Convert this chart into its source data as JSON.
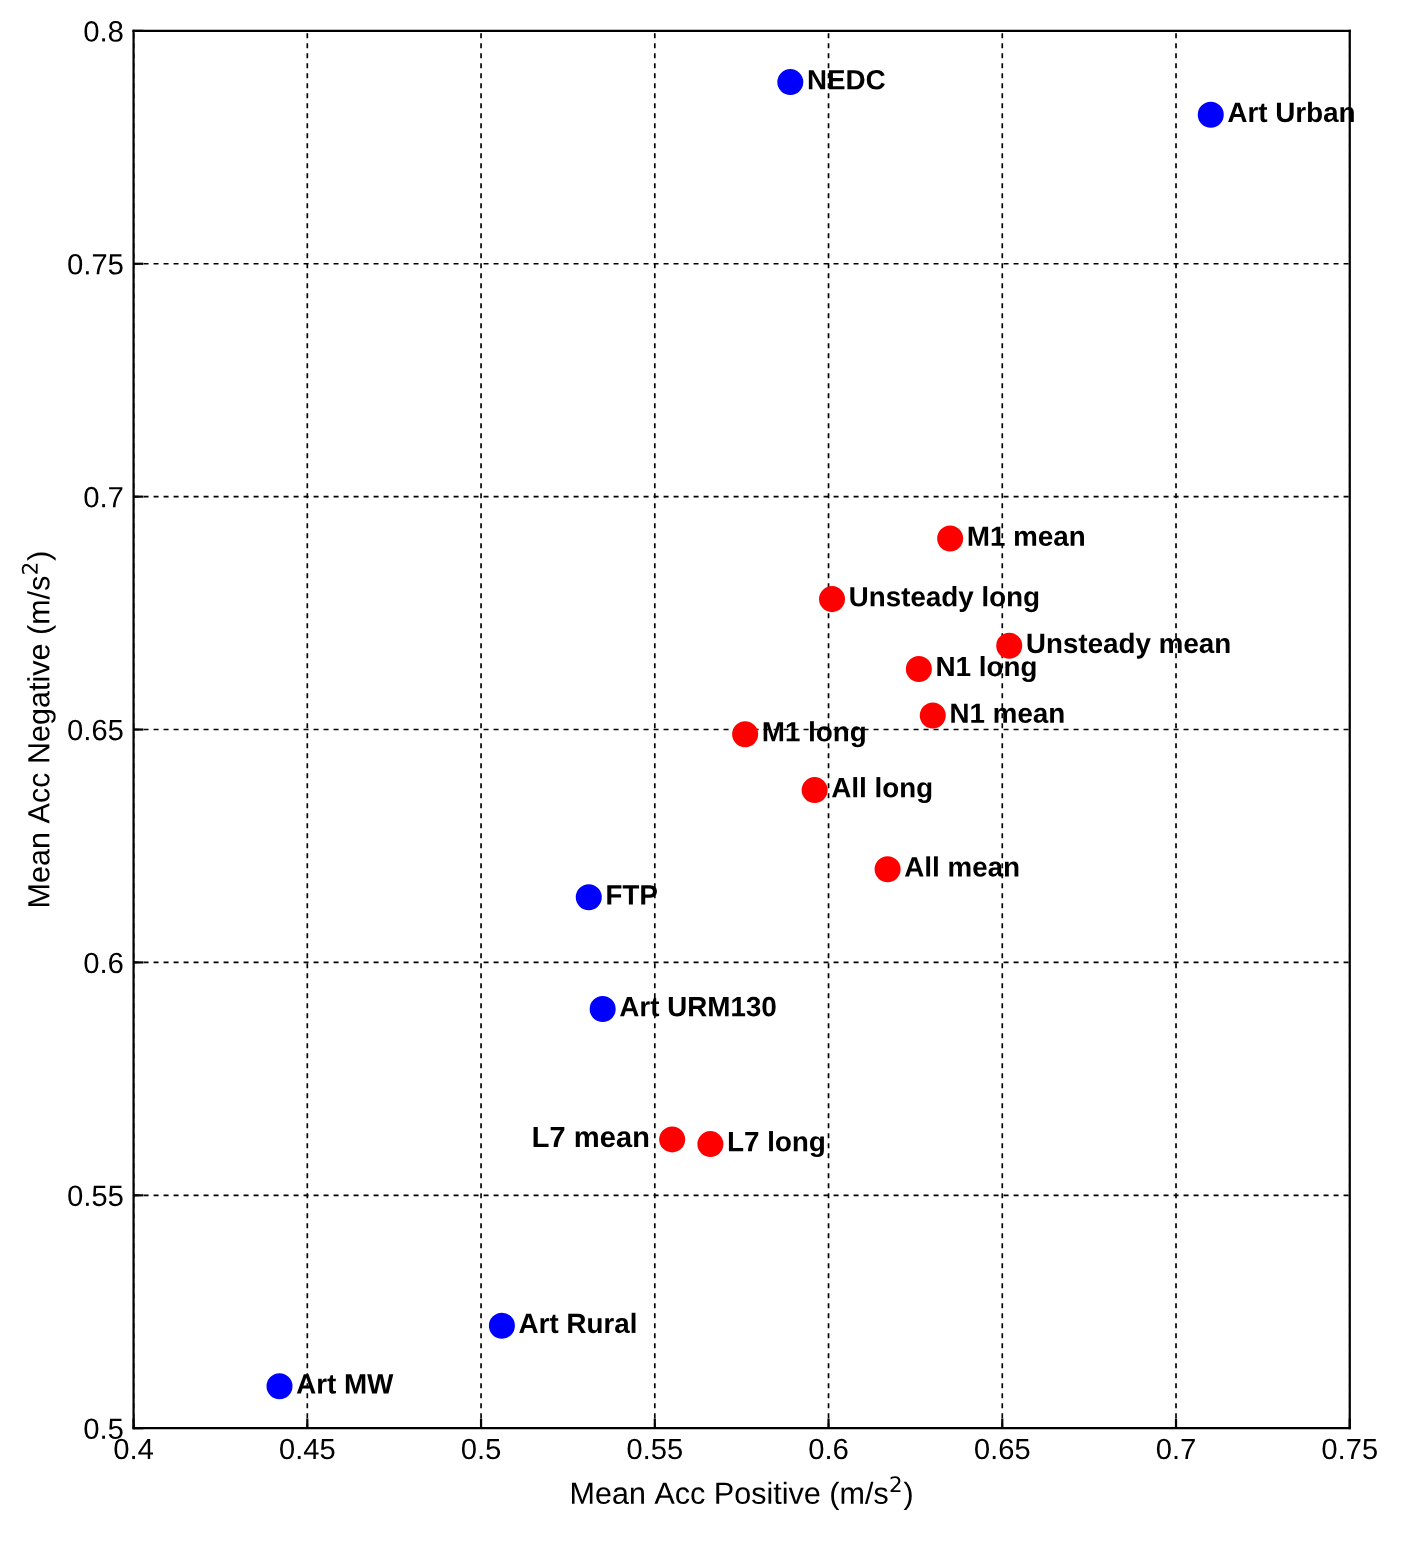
{
  "chart_data": {
    "type": "scatter",
    "xlabel": "Mean Acc Positive (m/s$^{2}$)",
    "ylabel": "Mean Acc Negative (m/s$^{2}$)",
    "xlim": [
      0.4,
      0.75
    ],
    "xticks": [
      0.4,
      0.45,
      0.5,
      0.55,
      0.6,
      0.65,
      0.7,
      0.75
    ],
    "ylim": [
      0.5,
      0.8
    ],
    "yticks": [
      0.5,
      0.55,
      0.6,
      0.65,
      0.7,
      0.75,
      0.8
    ],
    "grid": true,
    "marker": "circle",
    "series": [
      {
        "color": "#0000ff",
        "x": [
          0.589,
          0.71,
          0.531,
          0.535,
          0.506,
          0.442
        ],
        "values": [
          0.789,
          0.782,
          0.614,
          0.59,
          0.522,
          0.509
        ],
        "value_labels": [
          "NEDC",
          "Art Urban",
          "FTP",
          "Art URM130",
          "Art Rural",
          "Art MW"
        ]
      },
      {
        "color": "#ff0000",
        "x": [
          0.635,
          0.601,
          0.652,
          0.626,
          0.63,
          0.576,
          0.596,
          0.617,
          0.555,
          0.566
        ],
        "values": [
          0.691,
          0.678,
          0.668,
          0.663,
          0.653,
          0.649,
          0.637,
          0.62,
          0.562,
          0.561
        ],
        "value_labels": [
          "M1 mean",
          "Unsteady long",
          "Unsteady mean",
          "N1 long",
          "N1 mean",
          "M1 long",
          "All long",
          "All mean",
          "L7 mean",
          "L7 long"
        ]
      }
    ]
  }
}
